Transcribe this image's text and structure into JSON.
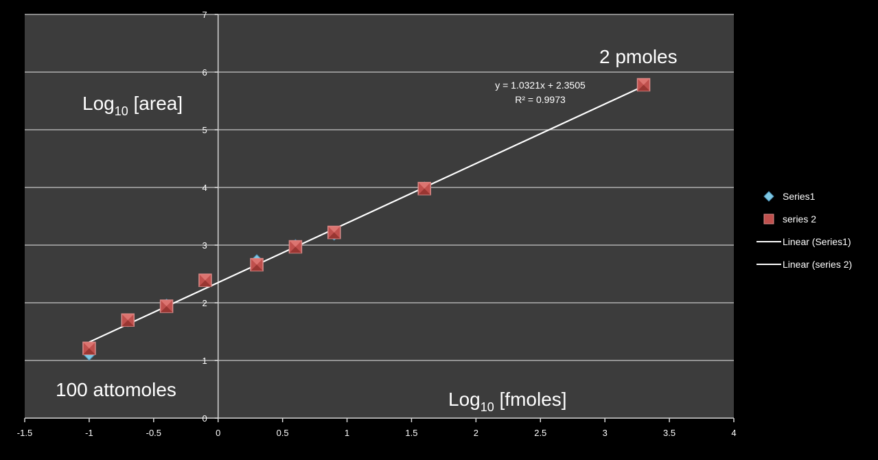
{
  "chart_data": {
    "type": "scatter",
    "xlim": [
      -1.5,
      4
    ],
    "ylim": [
      0,
      7
    ],
    "x_ticks": [
      "-1.5",
      "-1",
      "-0.5",
      "0",
      "0.5",
      "1",
      "1.5",
      "2",
      "2.5",
      "3",
      "3.5",
      "4"
    ],
    "y_ticks": [
      "0",
      "1",
      "2",
      "3",
      "4",
      "5",
      "6",
      "7"
    ],
    "grid": "horizontal and vertical at x=0",
    "background_color": "#3c3c3c",
    "annotations": {
      "y_axis_title_main": "Log",
      "y_axis_title_sub": "10",
      "y_axis_title_rest": " [area]",
      "x_axis_title_main": "Log",
      "x_axis_title_sub": "10",
      "x_axis_title_rest": " [fmoles]",
      "low_label": "100 attomoles",
      "high_label": "2 pmoles",
      "equation": "y = 1.0321x + 2.3505",
      "r_squared": "R² = 0.9973"
    },
    "series": [
      {
        "name": "Series1",
        "marker": "diamond",
        "color": "#7ec8e3",
        "points": [
          [
            -1,
            1.1
          ],
          [
            -0.7,
            1.68
          ],
          [
            -0.4,
            1.97
          ],
          [
            -0.1,
            2.4
          ],
          [
            0.3,
            2.74
          ],
          [
            0.6,
            3.0
          ],
          [
            0.9,
            3.18
          ],
          [
            1.6,
            4.0
          ],
          [
            3.3,
            5.78
          ]
        ]
      },
      {
        "name": "series 2",
        "marker": "square",
        "color": "#c0504d",
        "points": [
          [
            -1,
            1.21
          ],
          [
            -0.7,
            1.7
          ],
          [
            -0.4,
            1.94
          ],
          [
            -0.1,
            2.39
          ],
          [
            0.3,
            2.66
          ],
          [
            0.6,
            2.97
          ],
          [
            0.9,
            3.22
          ],
          [
            1.6,
            3.98
          ],
          [
            3.3,
            5.78
          ]
        ]
      }
    ],
    "trendlines": [
      {
        "name": "Linear (Series1)",
        "slope": 1.0321,
        "intercept": 2.3505,
        "x_range": [
          -1,
          3.3
        ]
      },
      {
        "name": "Linear (series 2)",
        "slope": 1.0321,
        "intercept": 2.3505,
        "x_range": [
          -1,
          3.3
        ]
      }
    ],
    "legend": {
      "placement": "right",
      "entries": [
        "Series1",
        "series 2",
        "Linear (Series1)",
        "Linear (series 2)"
      ]
    }
  }
}
